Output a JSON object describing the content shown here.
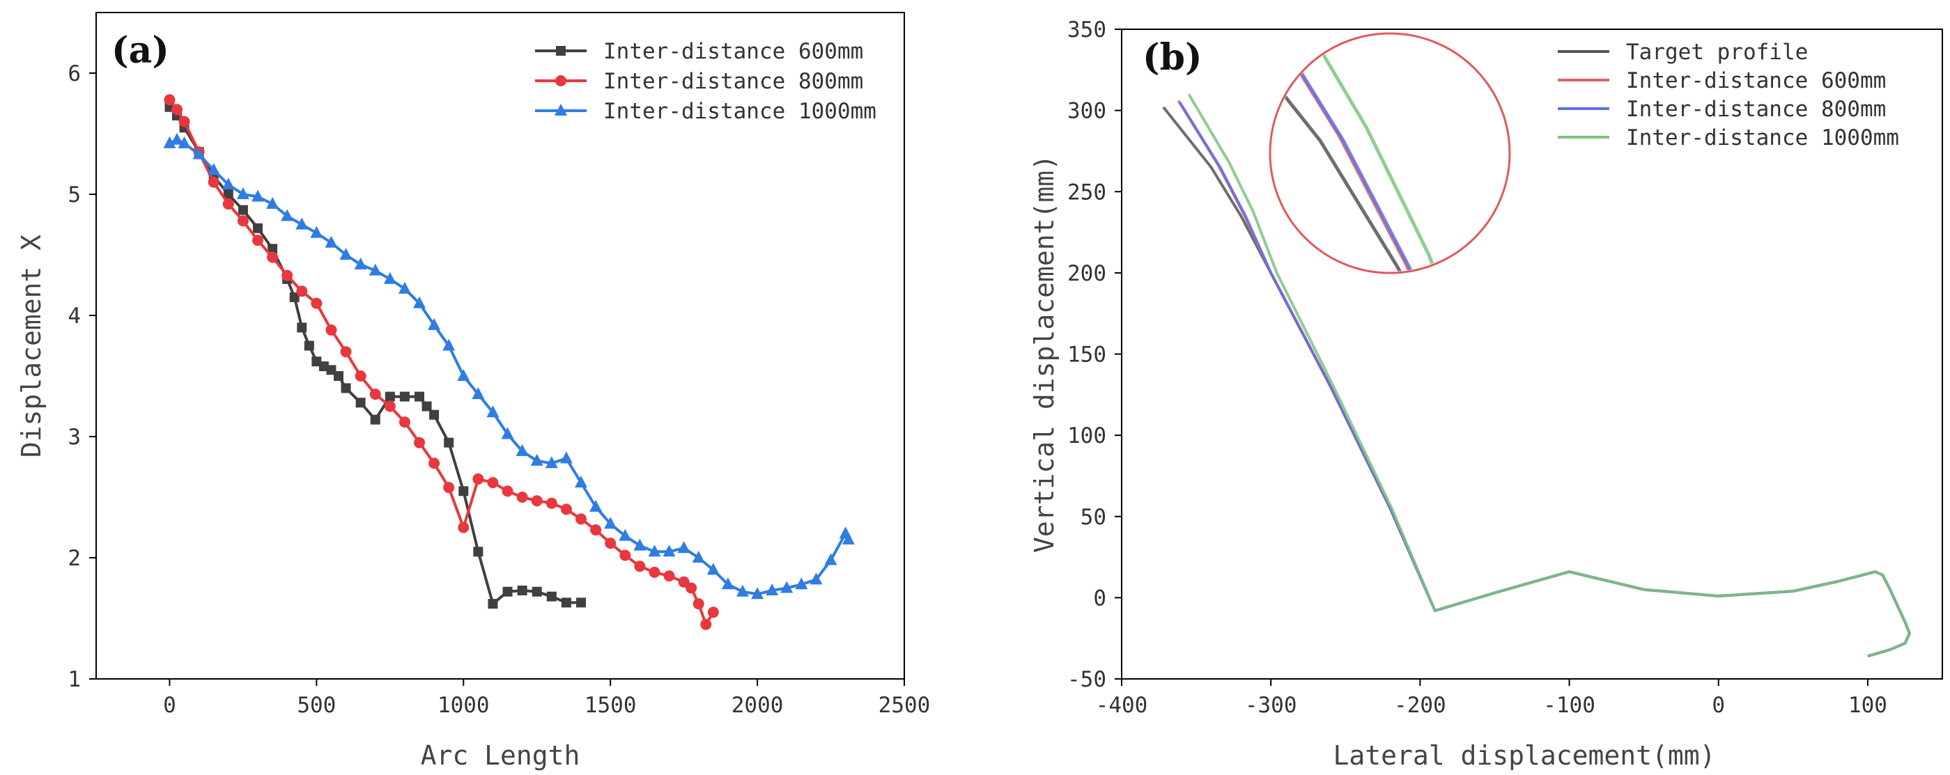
{
  "chart_data": [
    {
      "type": "line",
      "panel_label": "(a)",
      "xlabel": "Arc Length",
      "ylabel": "Displacement X",
      "xlim": [
        -250,
        2500
      ],
      "ylim": [
        1,
        6.5
      ],
      "xticks": [
        0,
        500,
        1000,
        1500,
        2000,
        2500
      ],
      "yticks": [
        1,
        2,
        3,
        4,
        5,
        6
      ],
      "legend_position": "top-right",
      "series": [
        {
          "name": "Inter-distance 600mm",
          "color": "#404040",
          "marker": "square",
          "x": [
            0,
            25,
            50,
            100,
            150,
            200,
            250,
            300,
            350,
            400,
            425,
            450,
            475,
            500,
            525,
            550,
            575,
            600,
            650,
            700,
            750,
            800,
            850,
            875,
            900,
            950,
            1000,
            1050,
            1100,
            1150,
            1200,
            1250,
            1300,
            1350,
            1400
          ],
          "y": [
            5.72,
            5.65,
            5.55,
            5.35,
            5.15,
            5.0,
            4.87,
            4.72,
            4.55,
            4.3,
            4.15,
            3.9,
            3.75,
            3.62,
            3.58,
            3.55,
            3.5,
            3.4,
            3.28,
            3.14,
            3.33,
            3.33,
            3.33,
            3.25,
            3.18,
            2.95,
            2.55,
            2.05,
            1.62,
            1.72,
            1.73,
            1.72,
            1.68,
            1.63,
            1.63
          ]
        },
        {
          "name": "Inter-distance 800mm",
          "color": "#e8383d",
          "marker": "circle",
          "x": [
            0,
            25,
            50,
            100,
            150,
            200,
            250,
            300,
            350,
            400,
            450,
            500,
            550,
            600,
            650,
            700,
            750,
            800,
            850,
            900,
            950,
            1000,
            1050,
            1100,
            1150,
            1200,
            1250,
            1300,
            1350,
            1400,
            1450,
            1500,
            1550,
            1600,
            1650,
            1700,
            1750,
            1775,
            1800,
            1825,
            1850
          ],
          "y": [
            5.78,
            5.7,
            5.6,
            5.35,
            5.1,
            4.92,
            4.78,
            4.62,
            4.48,
            4.33,
            4.2,
            4.1,
            3.88,
            3.7,
            3.5,
            3.35,
            3.25,
            3.12,
            2.95,
            2.78,
            2.58,
            2.25,
            2.65,
            2.62,
            2.55,
            2.5,
            2.47,
            2.45,
            2.4,
            2.32,
            2.23,
            2.12,
            2.02,
            1.93,
            1.88,
            1.85,
            1.8,
            1.75,
            1.62,
            1.45,
            1.55
          ]
        },
        {
          "name": "Inter-distance 1000mm",
          "color": "#2f7de1",
          "marker": "triangle",
          "x": [
            0,
            25,
            50,
            100,
            150,
            200,
            250,
            300,
            350,
            400,
            450,
            500,
            550,
            600,
            650,
            700,
            750,
            800,
            850,
            900,
            950,
            1000,
            1050,
            1100,
            1150,
            1200,
            1250,
            1300,
            1350,
            1400,
            1450,
            1500,
            1550,
            1600,
            1650,
            1700,
            1750,
            1800,
            1850,
            1900,
            1950,
            2000,
            2050,
            2100,
            2150,
            2200,
            2250,
            2300,
            2310
          ],
          "y": [
            5.42,
            5.45,
            5.42,
            5.33,
            5.2,
            5.08,
            5.0,
            4.98,
            4.92,
            4.82,
            4.75,
            4.68,
            4.6,
            4.5,
            4.42,
            4.37,
            4.3,
            4.22,
            4.1,
            3.92,
            3.75,
            3.5,
            3.35,
            3.2,
            3.02,
            2.88,
            2.8,
            2.78,
            2.82,
            2.62,
            2.42,
            2.28,
            2.18,
            2.1,
            2.05,
            2.05,
            2.08,
            2.0,
            1.9,
            1.78,
            1.72,
            1.7,
            1.73,
            1.75,
            1.78,
            1.82,
            1.98,
            2.2,
            2.15
          ]
        }
      ]
    },
    {
      "type": "line",
      "panel_label": "(b)",
      "xlabel": "Lateral displacement(mm)",
      "ylabel": "Vertical displacement(mm)",
      "xlim": [
        -400,
        150
      ],
      "ylim": [
        -50,
        350
      ],
      "xticks": [
        -400,
        -300,
        -200,
        -100,
        0,
        100
      ],
      "yticks": [
        -50,
        0,
        50,
        100,
        150,
        200,
        250,
        300,
        350
      ],
      "legend_position": "top-right",
      "series": [
        {
          "name": "Target profile",
          "color": "#555555",
          "x": [
            -372,
            -340,
            -320,
            -300,
            -260,
            -220,
            -190,
            -150,
            -100,
            -50,
            0,
            50,
            80,
            105,
            110,
            115,
            120,
            125,
            128,
            125,
            115,
            100
          ],
          "y": [
            302,
            265,
            235,
            200,
            130,
            55,
            -8,
            3,
            16,
            5,
            1,
            4,
            10,
            16,
            14,
            5,
            -5,
            -15,
            -22,
            -28,
            -32,
            -36
          ]
        },
        {
          "name": "Inter-distance 600mm",
          "color": "#e06060",
          "x": [
            -362,
            -335,
            -318,
            -300,
            -260,
            -220,
            -190,
            -150,
            -100,
            -50,
            0,
            50,
            80,
            105,
            110,
            115,
            120,
            125,
            128,
            125,
            115,
            100
          ],
          "y": [
            306,
            266,
            236,
            200,
            130,
            55,
            -8,
            3,
            16,
            5,
            1,
            4,
            10,
            16,
            14,
            5,
            -5,
            -15,
            -22,
            -28,
            -32,
            -36
          ]
        },
        {
          "name": "Inter-distance 800mm",
          "color": "#6070e8",
          "x": [
            -361,
            -334,
            -317,
            -300,
            -260,
            -220,
            -190,
            -150,
            -100,
            -50,
            0,
            50,
            80,
            105,
            110,
            115,
            120,
            125,
            128,
            125,
            115,
            100
          ],
          "y": [
            305,
            265,
            235,
            200,
            130,
            55,
            -8,
            3,
            16,
            5,
            1,
            4,
            10,
            16,
            14,
            5,
            -5,
            -15,
            -22,
            -28,
            -32,
            -36
          ]
        },
        {
          "name": "Inter-distance 1000mm",
          "color": "#7cc47c",
          "x": [
            -355,
            -328,
            -312,
            -296,
            -258,
            -219,
            -190,
            -150,
            -100,
            -50,
            0,
            50,
            80,
            105,
            110,
            115,
            120,
            125,
            128,
            125,
            115,
            100
          ],
          "y": [
            310,
            268,
            238,
            200,
            130,
            55,
            -8,
            3,
            16,
            5,
            1,
            4,
            10,
            16,
            14,
            5,
            -5,
            -15,
            -22,
            -28,
            -32,
            -36
          ]
        }
      ]
    }
  ]
}
